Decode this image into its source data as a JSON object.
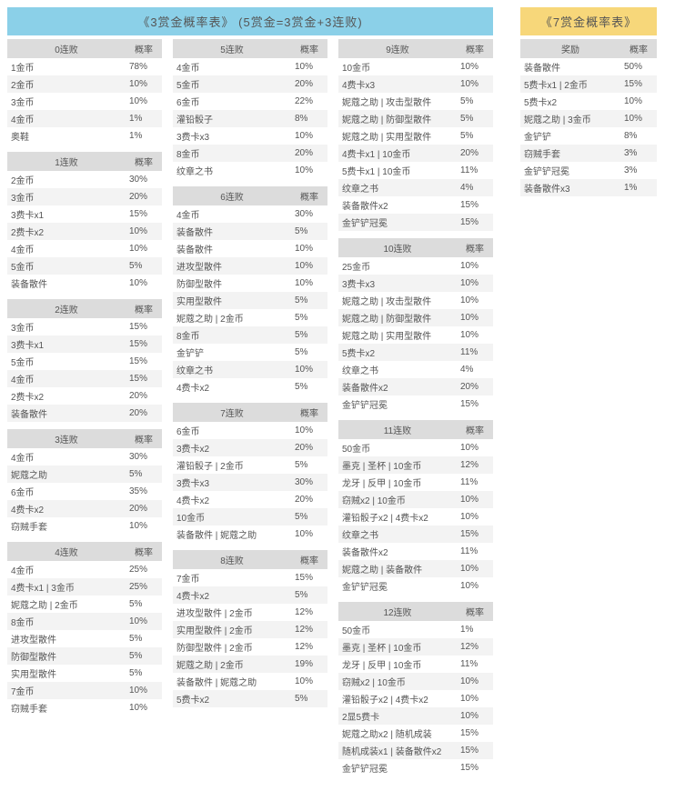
{
  "main": {
    "title": "《3赏金概率表》 (5赏金=3赏金+3连败)",
    "title_bg": "#8bd0e8",
    "title_color": "#555555",
    "header_bg": "#dcdcdc",
    "row_odd_bg": "#f3f3f3",
    "row_even_bg": "#ffffff",
    "text_color": "#555555",
    "prob_label": "概率",
    "columns": [
      [
        {
          "head": "0连败",
          "rows": [
            [
              "1金币",
              "78%"
            ],
            [
              "2金币",
              "10%"
            ],
            [
              "3金币",
              "10%"
            ],
            [
              "4金币",
              "1%"
            ],
            [
              "奥鞋",
              "1%"
            ]
          ]
        },
        {
          "head": "1连败",
          "rows": [
            [
              "2金币",
              "30%"
            ],
            [
              "3金币",
              "20%"
            ],
            [
              "3费卡x1",
              "15%"
            ],
            [
              "2费卡x2",
              "10%"
            ],
            [
              "4金币",
              "10%"
            ],
            [
              "5金币",
              "5%"
            ],
            [
              "装备散件",
              "10%"
            ]
          ]
        },
        {
          "head": "2连败",
          "rows": [
            [
              "3金币",
              "15%"
            ],
            [
              "3费卡x1",
              "15%"
            ],
            [
              "5金币",
              "15%"
            ],
            [
              "4金币",
              "15%"
            ],
            [
              "2费卡x2",
              "20%"
            ],
            [
              "装备散件",
              "20%"
            ]
          ]
        },
        {
          "head": "3连败",
          "rows": [
            [
              "4金币",
              "30%"
            ],
            [
              "妮蔻之助",
              "5%"
            ],
            [
              "6金币",
              "35%"
            ],
            [
              "4费卡x2",
              "20%"
            ],
            [
              "窃贼手套",
              "10%"
            ]
          ]
        },
        {
          "head": "4连败",
          "rows": [
            [
              "4金币",
              "25%"
            ],
            [
              "4费卡x1 | 3金币",
              "25%"
            ],
            [
              "妮蔻之助 | 2金币",
              "5%"
            ],
            [
              "8金币",
              "10%"
            ],
            [
              "进攻型散件",
              "5%"
            ],
            [
              "防御型散件",
              "5%"
            ],
            [
              "实用型散件",
              "5%"
            ],
            [
              "7金币",
              "10%"
            ],
            [
              "窃贼手套",
              "10%"
            ]
          ]
        }
      ],
      [
        {
          "head": "5连败",
          "rows": [
            [
              "4金币",
              "10%"
            ],
            [
              "5金币",
              "20%"
            ],
            [
              "6金币",
              "22%"
            ],
            [
              "灌铅骰子",
              "8%"
            ],
            [
              "3费卡x3",
              "10%"
            ],
            [
              "8金币",
              "20%"
            ],
            [
              "纹章之书",
              "10%"
            ]
          ]
        },
        {
          "head": "6连败",
          "rows": [
            [
              "4金币",
              "30%"
            ],
            [
              "装备散件",
              "5%"
            ],
            [
              "装备散件",
              "10%"
            ],
            [
              "进攻型散件",
              "10%"
            ],
            [
              "防御型散件",
              "10%"
            ],
            [
              "实用型散件",
              "5%"
            ],
            [
              "妮蔻之助 | 2金币",
              "5%"
            ],
            [
              "8金币",
              "5%"
            ],
            [
              "金铲铲",
              "5%"
            ],
            [
              "纹章之书",
              "10%"
            ],
            [
              "4费卡x2",
              "5%"
            ]
          ]
        },
        {
          "head": "7连败",
          "rows": [
            [
              "6金币",
              "10%"
            ],
            [
              "3费卡x2",
              "20%"
            ],
            [
              "灌铅骰子 | 2金币",
              "5%"
            ],
            [
              "3费卡x3",
              "30%"
            ],
            [
              "4费卡x2",
              "20%"
            ],
            [
              "10金币",
              "5%"
            ],
            [
              "装备散件 | 妮蔻之助",
              "10%"
            ]
          ]
        },
        {
          "head": "8连败",
          "rows": [
            [
              "7金币",
              "15%"
            ],
            [
              "4费卡x2",
              "5%"
            ],
            [
              "进攻型散件 | 2金币",
              "12%"
            ],
            [
              "实用型散件 | 2金币",
              "12%"
            ],
            [
              "防御型散件 | 2金币",
              "12%"
            ],
            [
              "妮蔻之助 | 2金币",
              "19%"
            ],
            [
              "装备散件 | 妮蔻之助",
              "10%"
            ],
            [
              "5费卡x2",
              "5%"
            ]
          ]
        }
      ],
      [
        {
          "head": "9连败",
          "rows": [
            [
              "10金币",
              "10%"
            ],
            [
              "4费卡x3",
              "10%"
            ],
            [
              "妮蔻之助 | 攻击型散件",
              "5%"
            ],
            [
              "妮蔻之助 | 防御型散件",
              "5%"
            ],
            [
              "妮蔻之助 | 实用型散件",
              "5%"
            ],
            [
              "4费卡x1 | 10金币",
              "20%"
            ],
            [
              "5费卡x1 | 10金币",
              "11%"
            ],
            [
              "纹章之书",
              "4%"
            ],
            [
              "装备散件x2",
              "15%"
            ],
            [
              "金铲铲冠冕",
              "15%"
            ]
          ]
        },
        {
          "head": "10连败",
          "rows": [
            [
              "25金币",
              "10%"
            ],
            [
              "3费卡x3",
              "10%"
            ],
            [
              "妮蔻之助 | 攻击型散件",
              "10%"
            ],
            [
              "妮蔻之助 | 防御型散件",
              "10%"
            ],
            [
              "妮蔻之助 | 实用型散件",
              "10%"
            ],
            [
              "5费卡x2",
              "11%"
            ],
            [
              "纹章之书",
              "4%"
            ],
            [
              "装备散件x2",
              "20%"
            ],
            [
              "金铲铲冠冕",
              "15%"
            ]
          ]
        },
        {
          "head": "11连败",
          "rows": [
            [
              "50金币",
              "10%"
            ],
            [
              "墨克 | 圣杯 | 10金币",
              "12%"
            ],
            [
              "龙牙 | 反甲 | 10金币",
              "11%"
            ],
            [
              "窃贼x2 | 10金币",
              "10%"
            ],
            [
              "灌铅骰子x2 | 4费卡x2",
              "10%"
            ],
            [
              "纹章之书",
              "15%"
            ],
            [
              "装备散件x2",
              "11%"
            ],
            [
              "妮蔻之助 | 装备散件",
              "10%"
            ],
            [
              "金铲铲冠冕",
              "10%"
            ]
          ]
        },
        {
          "head": "12连败",
          "rows": [
            [
              "50金币",
              "1%"
            ],
            [
              "墨克 | 圣杯 | 10金币",
              "12%"
            ],
            [
              "龙牙 | 反甲 | 10金币",
              "11%"
            ],
            [
              "窃贼x2 | 10金币",
              "10%"
            ],
            [
              "灌铅骰子x2 | 4费卡x2",
              "10%"
            ],
            [
              "2显5费卡",
              "10%"
            ],
            [
              "妮蔻之助x2 | 随机成装",
              "15%"
            ],
            [
              "随机成装x1 | 装备散件x2",
              "15%"
            ],
            [
              "金铲铲冠冕",
              "15%"
            ]
          ]
        }
      ]
    ]
  },
  "side": {
    "title": "《7赏金概率表》",
    "title_bg": "#f7d77a",
    "title_color": "#555555",
    "head_reward": "奖励",
    "head_prob": "概率",
    "rows": [
      [
        "装备散件",
        "50%"
      ],
      [
        "5费卡x1 | 2金币",
        "15%"
      ],
      [
        "5费卡x2",
        "10%"
      ],
      [
        "妮蔻之助 | 3金币",
        "10%"
      ],
      [
        "金铲铲",
        "8%"
      ],
      [
        "窃贼手套",
        "3%"
      ],
      [
        "金铲铲冠冕",
        "3%"
      ],
      [
        "装备散件x3",
        "1%"
      ]
    ]
  }
}
